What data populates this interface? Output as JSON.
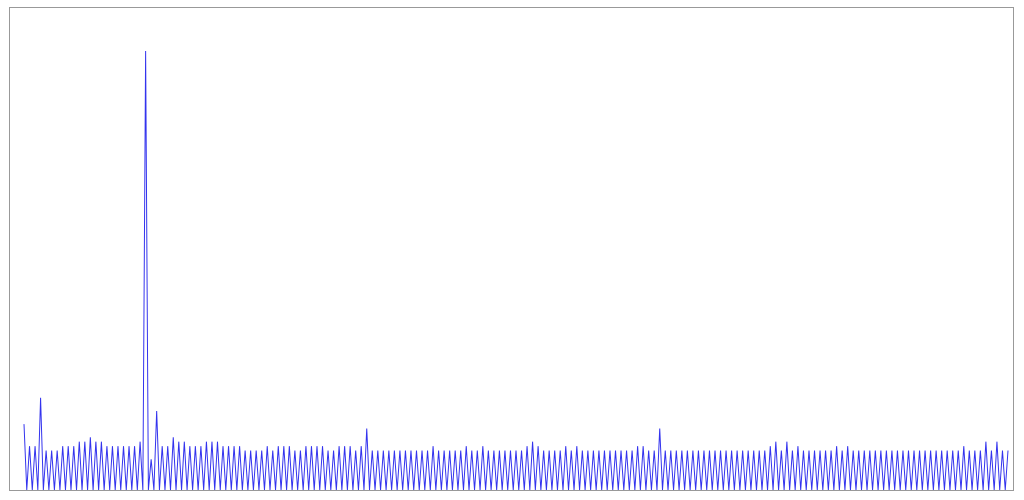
{
  "chart_data": {
    "type": "line",
    "title": "",
    "xlabel": "",
    "ylabel": "",
    "xlim": [
      0,
      200
    ],
    "ylim": [
      0,
      100
    ],
    "grid": false,
    "legend": "none",
    "line_color": "#3333ee",
    "series": [
      {
        "values": [
          15,
          0,
          10,
          0,
          10,
          0,
          21,
          0,
          9,
          0,
          9,
          0,
          9,
          0,
          10,
          0,
          10,
          0,
          10,
          0,
          11,
          0,
          11,
          0,
          12,
          0,
          11,
          0,
          11,
          0,
          10,
          0,
          10,
          0,
          10,
          0,
          10,
          0,
          10,
          0,
          10,
          0,
          11,
          0,
          100,
          0,
          7,
          0,
          18,
          0,
          10,
          0,
          10,
          0,
          12,
          0,
          11,
          0,
          11,
          0,
          10,
          0,
          10,
          0,
          10,
          0,
          11,
          0,
          11,
          0,
          11,
          0,
          10,
          0,
          10,
          0,
          10,
          0,
          10,
          0,
          9,
          0,
          9,
          0,
          9,
          0,
          9,
          0,
          10,
          0,
          9,
          0,
          10,
          0,
          10,
          0,
          10,
          0,
          9,
          0,
          9,
          0,
          10,
          0,
          10,
          0,
          10,
          0,
          10,
          0,
          9,
          0,
          9,
          0,
          10,
          0,
          10,
          0,
          10,
          0,
          9,
          0,
          10,
          0,
          14,
          0,
          9,
          0,
          9,
          0,
          9,
          0,
          9,
          0,
          9,
          0,
          9,
          0,
          9,
          0,
          9,
          0,
          9,
          0,
          9,
          0,
          9,
          0,
          10,
          0,
          9,
          0,
          9,
          0,
          9,
          0,
          9,
          0,
          9,
          0,
          10,
          0,
          9,
          0,
          9,
          0,
          10,
          0,
          9,
          0,
          9,
          0,
          9,
          0,
          9,
          0,
          9,
          0,
          9,
          0,
          9,
          0,
          10,
          0,
          11,
          0,
          10,
          0,
          9,
          0,
          9,
          0,
          9,
          0,
          9,
          0,
          10,
          0,
          9,
          0,
          10,
          0,
          9,
          0,
          9,
          0,
          9,
          0,
          9,
          0,
          9,
          0,
          9,
          0,
          9,
          0,
          9,
          0,
          9,
          0,
          9,
          0,
          10,
          0,
          10,
          0,
          9,
          0,
          9,
          0,
          14,
          0,
          9,
          0,
          9,
          0,
          9,
          0,
          9,
          0,
          9,
          0,
          9,
          0,
          9,
          0,
          9,
          0,
          9,
          0,
          9,
          0,
          9,
          0,
          9,
          0,
          9,
          0,
          9,
          0,
          9,
          0,
          9,
          0,
          9,
          0,
          9,
          0,
          9,
          0,
          10,
          0,
          11,
          0,
          9,
          0,
          11,
          0,
          9,
          0,
          10,
          0,
          9,
          0,
          9,
          0,
          9,
          0,
          9,
          0,
          9,
          0,
          9,
          0,
          10,
          0,
          9,
          0,
          10,
          0,
          9,
          0,
          9,
          0,
          9,
          0,
          9,
          0,
          9,
          0,
          9,
          0,
          9,
          0,
          9,
          0,
          9,
          0,
          9,
          0,
          9,
          0,
          9,
          0,
          9,
          0,
          9,
          0,
          9,
          0,
          9,
          0,
          9,
          0,
          9,
          0,
          9,
          0,
          9,
          0,
          10,
          0,
          9,
          0,
          9,
          0,
          9,
          0,
          11,
          0,
          9,
          0,
          11,
          0,
          9,
          0,
          9
        ]
      }
    ]
  }
}
